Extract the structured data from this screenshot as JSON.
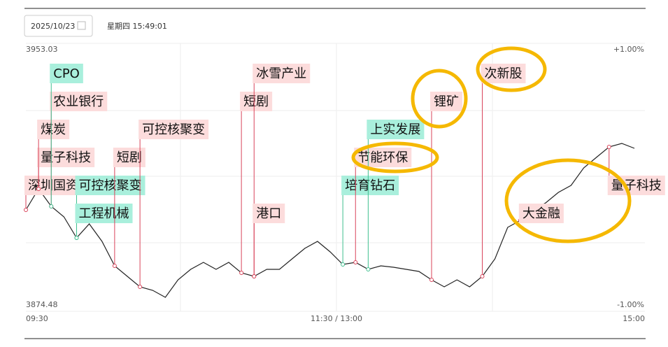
{
  "header": {
    "date": "2025/10/23",
    "time": "星期四 15:49:01"
  },
  "chart_data": {
    "type": "line",
    "categories": [
      "09:30",
      null,
      null,
      null,
      null,
      null,
      null,
      null,
      null,
      null,
      null,
      null,
      null,
      null,
      null,
      null,
      null,
      null,
      null,
      null,
      null,
      null,
      null,
      null,
      "11:30 / 13:00",
      null,
      null,
      null,
      null,
      null,
      null,
      null,
      null,
      null,
      null,
      null,
      null,
      null,
      null,
      null,
      null,
      null,
      null,
      null,
      null,
      null,
      null,
      null,
      "15:00"
    ],
    "series": [
      {
        "color": "#222222",
        "values": [
          3903.53,
          3909.99,
          3904.61,
          3901.38,
          3894.93,
          3899.23,
          3893.85,
          3886.32,
          3883.09,
          3879.86,
          3878.79,
          3876.63,
          3882.01,
          3885.24,
          3887.39,
          3885.24,
          3887.39,
          3884.17,
          3883.09,
          3885.24,
          3885.24,
          3888.47,
          3891.7,
          3893.85,
          3890.62,
          3886.75,
          3887.39,
          3885.24,
          3886.32,
          3885.89,
          3885.24,
          3884.6,
          3882.01,
          3879.86,
          3882.01,
          3879.86,
          3883.09,
          3888.47,
          3898.15,
          3900.31,
          3903.53,
          3905.69,
          3908.91,
          3911.07,
          3916.45,
          3919.67,
          3922.9,
          3923.98,
          3922.47
        ]
      }
    ],
    "ylim": [
      3874.48,
      3953.03
    ],
    "yticks": [
      3874.48,
      3953.03
    ],
    "y2lim": [
      -1,
      1
    ],
    "y2ticks": [
      {
        "value": 1,
        "label": "+1.00%"
      },
      {
        "value": -1,
        "label": "-1.00%"
      }
    ],
    "annotations": [
      {
        "text": "深圳国资",
        "index": 0,
        "color": "#fcdcdc",
        "line": "#d9435a"
      },
      {
        "text": "量子科技",
        "index": 1,
        "color": "#fcdcdc",
        "line": "#d9435a"
      },
      {
        "text": "煤炭",
        "index": 1,
        "color": "#fcdcdc",
        "line": "#d9435a"
      },
      {
        "text": "农业银行",
        "index": 2,
        "color": "#fcdcdc",
        "line": "#d9435a"
      },
      {
        "text": "CPO",
        "index": 2,
        "color": "#a9efdc",
        "line": "#3fbf8f"
      },
      {
        "text": "可控核聚变",
        "index": 4,
        "color": "#a9efdc",
        "line": "#3fbf8f"
      },
      {
        "text": "工程机械",
        "index": 4,
        "color": "#a9efdc",
        "line": "#3fbf8f"
      },
      {
        "text": "短剧",
        "index": 7,
        "color": "#fcdcdc",
        "line": "#d9435a"
      },
      {
        "text": "可控核聚变",
        "index": 9,
        "color": "#fcdcdc",
        "line": "#d9435a"
      },
      {
        "text": "短剧",
        "index": 17,
        "color": "#fcdcdc",
        "line": "#d9435a"
      },
      {
        "text": "冰雪产业",
        "index": 18,
        "color": "#fcdcdc",
        "line": "#d9435a"
      },
      {
        "text": "港口",
        "index": 18,
        "color": "#fcdcdc",
        "line": "#d9435a"
      },
      {
        "text": "培育钻石",
        "index": 25,
        "color": "#a9efdc",
        "line": "#3fbf8f"
      },
      {
        "text": "节能环保",
        "index": 26,
        "color": "#fcdcdc",
        "line": "#d9435a"
      },
      {
        "text": "上实发展",
        "index": 27,
        "color": "#a9efdc",
        "line": "#3fbf8f"
      },
      {
        "text": "锂矿",
        "index": 32,
        "color": "#fcdcdc",
        "line": "#d9435a"
      },
      {
        "text": "次新股",
        "index": 36,
        "color": "#fcdcdc",
        "line": "#d9435a"
      },
      {
        "text": "大金融",
        "index": 39,
        "color": "#fcdcdc",
        "line": "#d9435a"
      },
      {
        "text": "量子科技",
        "index": 46,
        "color": "#fcdcdc",
        "line": "#d9435a"
      }
    ]
  }
}
